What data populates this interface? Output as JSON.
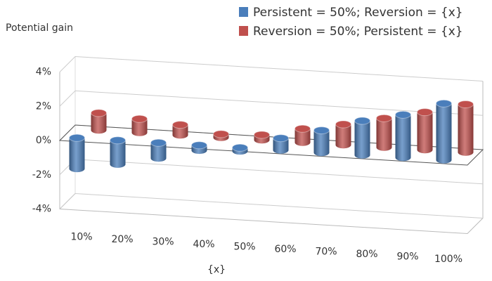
{
  "chart_data": {
    "type": "bar3d",
    "y_label": "Potential gain",
    "x_label": "{x}",
    "categories": [
      "10%",
      "20%",
      "30%",
      "40%",
      "50%",
      "60%",
      "70%",
      "80%",
      "90%",
      "100%"
    ],
    "series": [
      {
        "name": "Persistent = 50%; Reversion = {x}",
        "color": "#4a7ebb",
        "values": [
          -1.8,
          -1.4,
          -0.9,
          -0.3,
          -0.2,
          0.7,
          1.3,
          2.0,
          2.5,
          3.3
        ]
      },
      {
        "name": "Reversion = 50%; Persistent = {x}",
        "color": "#c0504d",
        "values": [
          1.0,
          0.8,
          0.6,
          0.2,
          0.3,
          0.8,
          1.2,
          1.7,
          2.2,
          2.8
        ]
      }
    ],
    "ylim": [
      -4,
      4
    ],
    "yticks": [
      {
        "value": -4,
        "label": "-4%"
      },
      {
        "value": -2,
        "label": "-2%"
      },
      {
        "value": 0,
        "label": "0%"
      },
      {
        "value": 2,
        "label": "2%"
      },
      {
        "value": 4,
        "label": "4%"
      }
    ],
    "grid": true,
    "legend_position": "top-right"
  }
}
